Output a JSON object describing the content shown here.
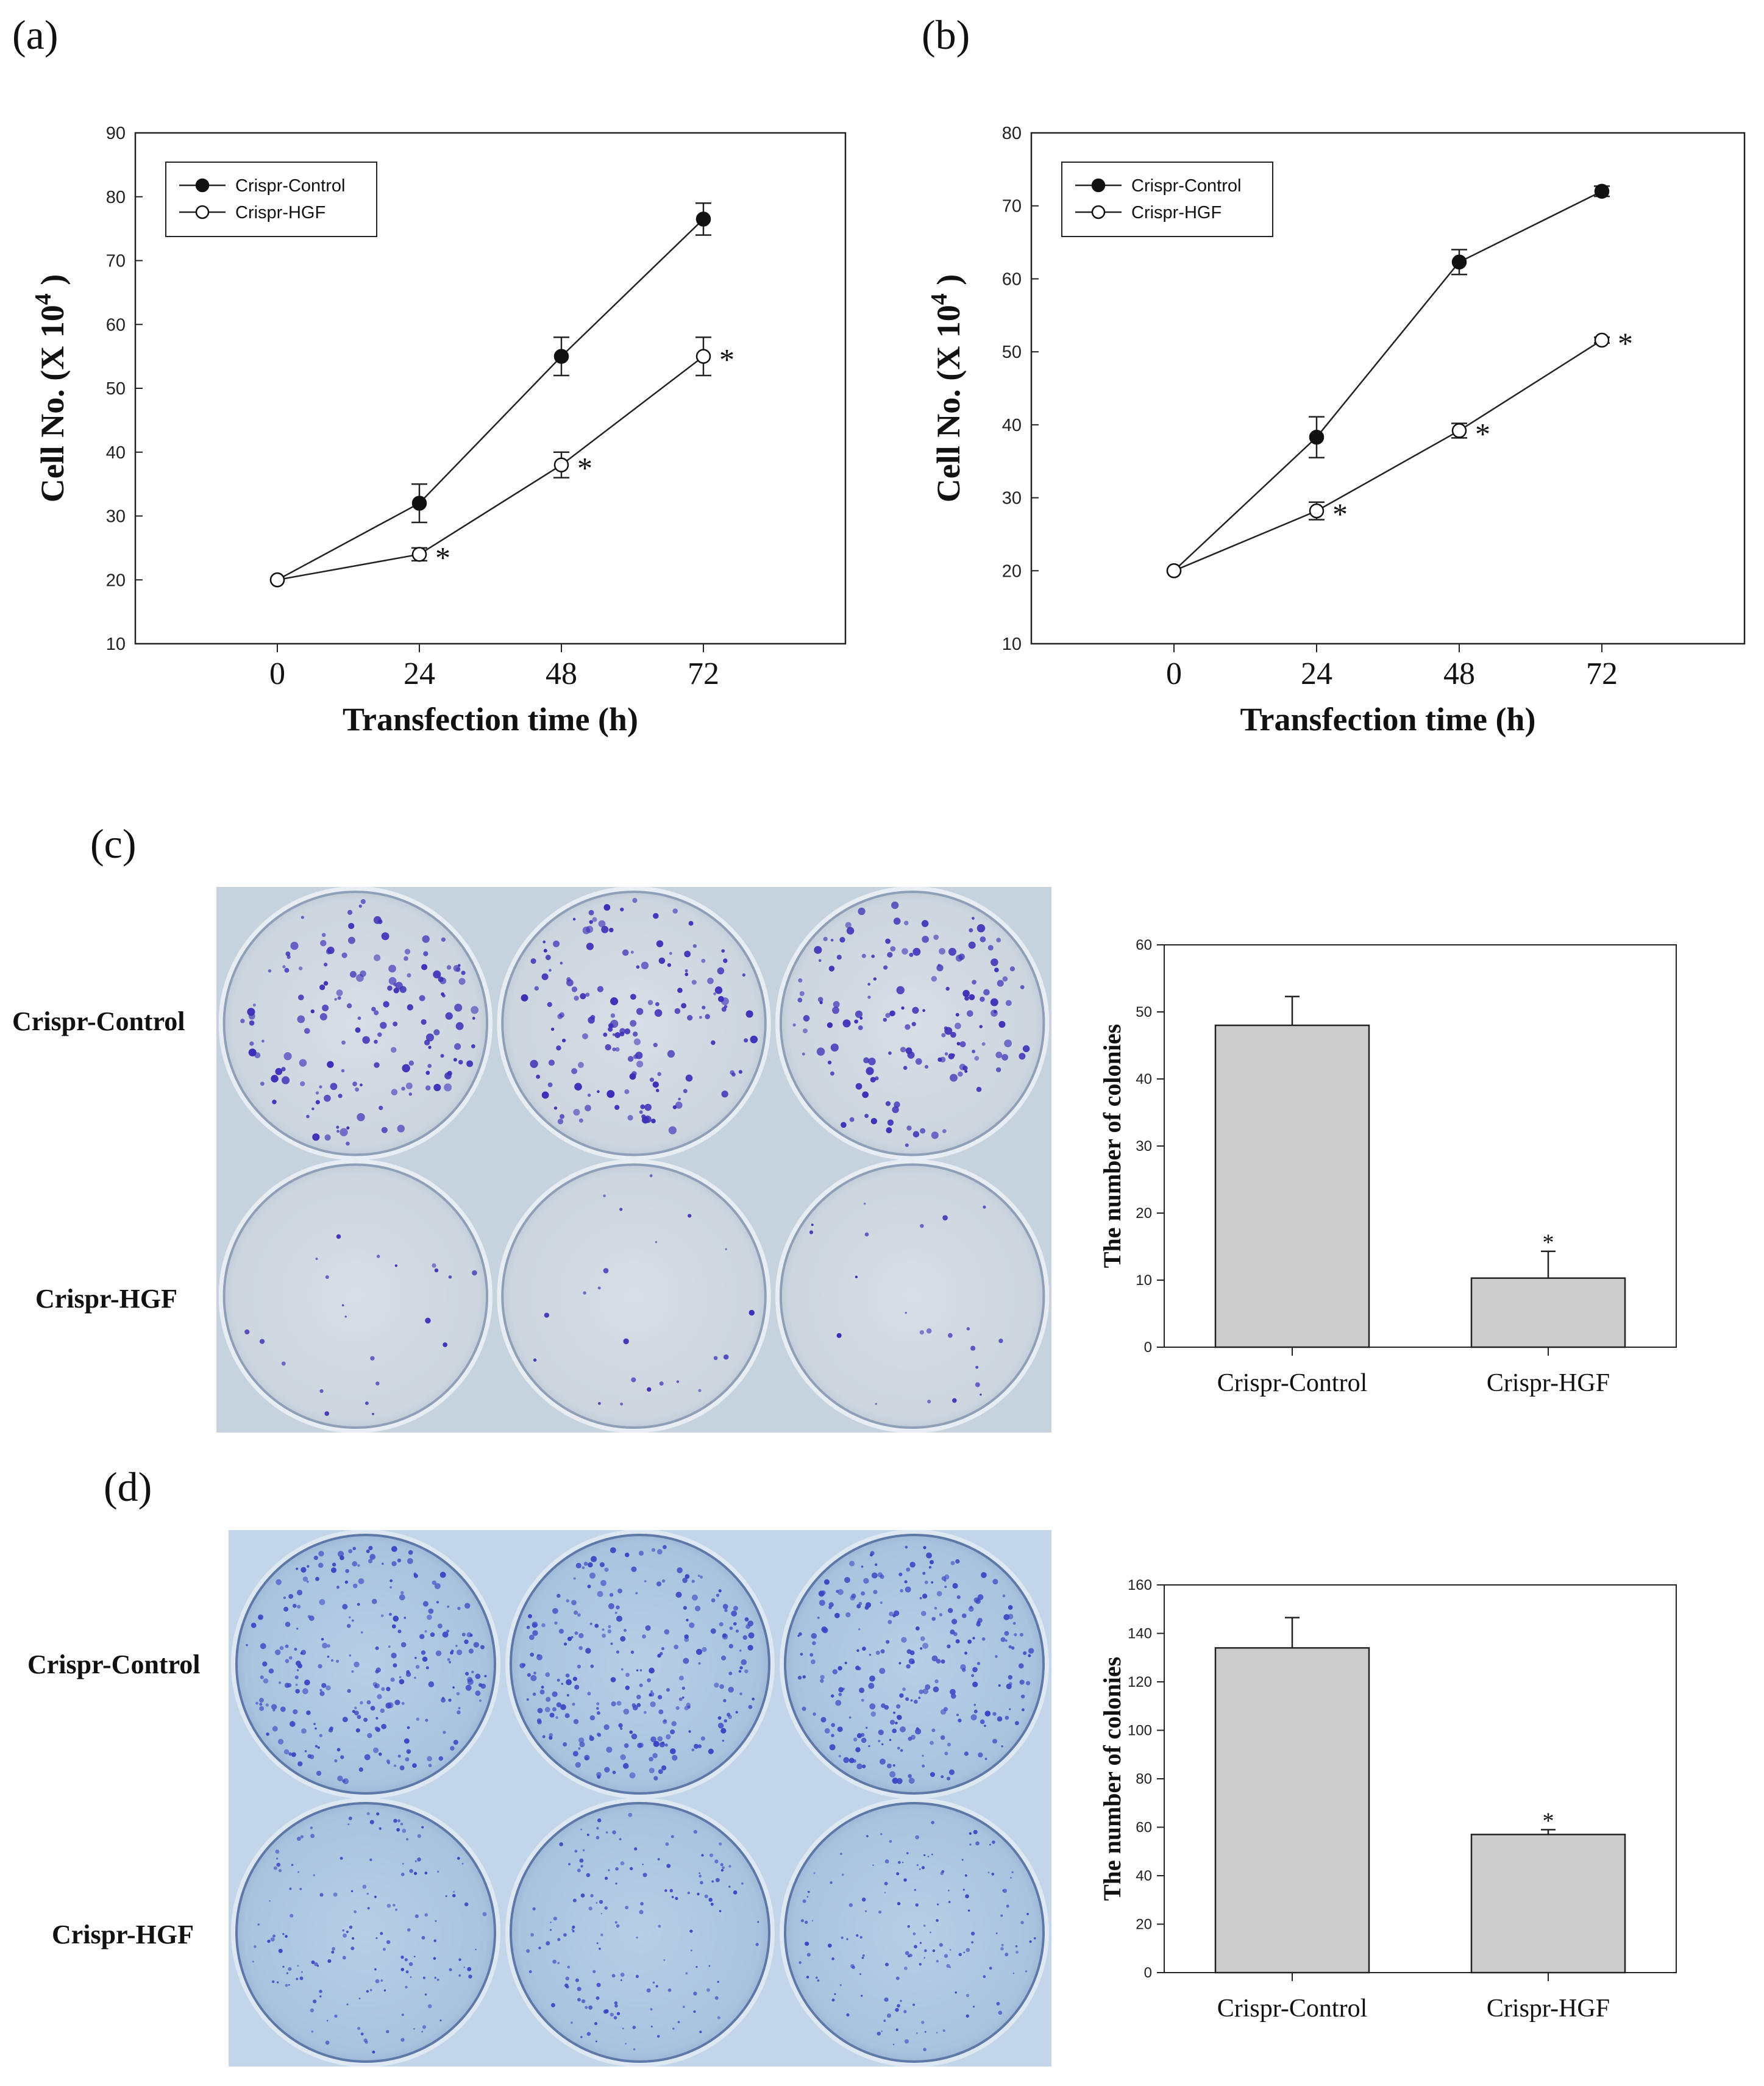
{
  "panels": {
    "a": "(a)",
    "b": "(b)",
    "c": "(c)",
    "d": "(d)"
  },
  "plate_labels": {
    "c": {
      "top": "Crispr-Control",
      "bottom": "Crispr-HGF"
    },
    "d": {
      "top": "Crispr-Control",
      "bottom": "Crispr-HGF"
    }
  },
  "chart_data": [
    {
      "id": "a",
      "type": "line",
      "x": [
        0,
        24,
        48,
        72
      ],
      "series": [
        {
          "name": "Crispr-Control",
          "marker": "filled",
          "values": [
            20,
            32,
            55,
            76.5
          ],
          "errors": [
            0,
            3,
            3,
            2.5
          ],
          "significant": [
            false,
            false,
            false,
            false
          ]
        },
        {
          "name": "Crispr-HGF",
          "marker": "open",
          "values": [
            20,
            24,
            38,
            55
          ],
          "errors": [
            0,
            1,
            2,
            3
          ],
          "significant": [
            false,
            true,
            true,
            true
          ]
        }
      ],
      "xlabel": "Transfection time (h)",
      "ylabel_prefix": "Cell No. (X 10",
      "ylabel_exp": "4",
      "ylabel_suffix": " )",
      "xlim": [
        -24,
        96
      ],
      "ylim": [
        10,
        90
      ],
      "yticks": [
        10,
        20,
        30,
        40,
        50,
        60,
        70,
        80,
        90
      ],
      "xticks": [
        0,
        24,
        48,
        72
      ],
      "legend": "top-left",
      "sig_mark": "*"
    },
    {
      "id": "b",
      "type": "line",
      "x": [
        0,
        24,
        48,
        72
      ],
      "series": [
        {
          "name": "Crispr-Control",
          "marker": "filled",
          "values": [
            20,
            38.3,
            62.3,
            72
          ],
          "errors": [
            0,
            2.8,
            1.7,
            0.7
          ],
          "significant": [
            false,
            false,
            false,
            false
          ]
        },
        {
          "name": "Crispr-HGF",
          "marker": "open",
          "values": [
            20,
            28.2,
            39.2,
            51.6
          ],
          "errors": [
            0,
            1.2,
            1.0,
            0.4
          ],
          "significant": [
            false,
            true,
            true,
            true
          ]
        }
      ],
      "xlabel": "Transfection time (h)",
      "ylabel_prefix": "Cell No. (X 10",
      "ylabel_exp": "4",
      "ylabel_suffix": " )",
      "xlim": [
        -24,
        96
      ],
      "ylim": [
        10,
        80
      ],
      "yticks": [
        10,
        20,
        30,
        40,
        50,
        60,
        70,
        80
      ],
      "xticks": [
        0,
        24,
        48,
        72
      ],
      "legend": "top-left",
      "sig_mark": "*"
    },
    {
      "id": "c",
      "type": "bar",
      "categories": [
        "Crispr-Control",
        "Crispr-HGF"
      ],
      "values": [
        48,
        10.3
      ],
      "errors": [
        4.3,
        4.0
      ],
      "significant": [
        false,
        true
      ],
      "ylabel": "The number of colonies",
      "ylim": [
        0,
        60
      ],
      "yticks": [
        0,
        10,
        20,
        30,
        40,
        50,
        60
      ],
      "sig_mark": "*"
    },
    {
      "id": "d",
      "type": "bar",
      "categories": [
        "Crispr-Control",
        "Crispr-HGF"
      ],
      "values": [
        134,
        57
      ],
      "errors": [
        12.5,
        2.0
      ],
      "significant": [
        false,
        true
      ],
      "ylabel": "The number of colonies",
      "ylim": [
        0,
        160
      ],
      "yticks": [
        0,
        20,
        40,
        60,
        80,
        100,
        120,
        140,
        160
      ],
      "sig_mark": "*"
    }
  ]
}
